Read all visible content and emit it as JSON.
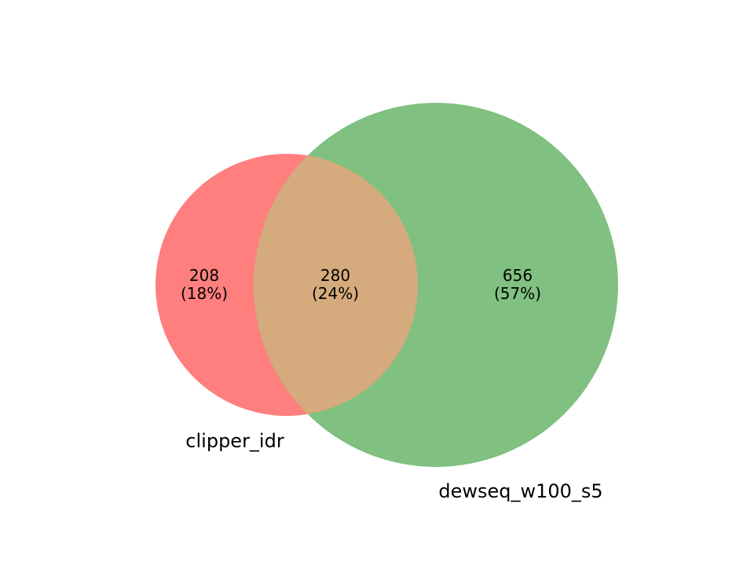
{
  "diagram": {
    "type": "venn2",
    "sets": [
      {
        "name": "clipper_idr",
        "color": "#ff7f7f"
      },
      {
        "name": "dewseq_w100_s5",
        "color": "#80c080"
      }
    ],
    "intersection_color": "#d5aa7c",
    "regions": {
      "left_only": {
        "count": "208",
        "percent": "(18%)"
      },
      "both": {
        "count": "280",
        "percent": "(24%)"
      },
      "right_only": {
        "count": "656",
        "percent": "(57%)"
      }
    }
  }
}
